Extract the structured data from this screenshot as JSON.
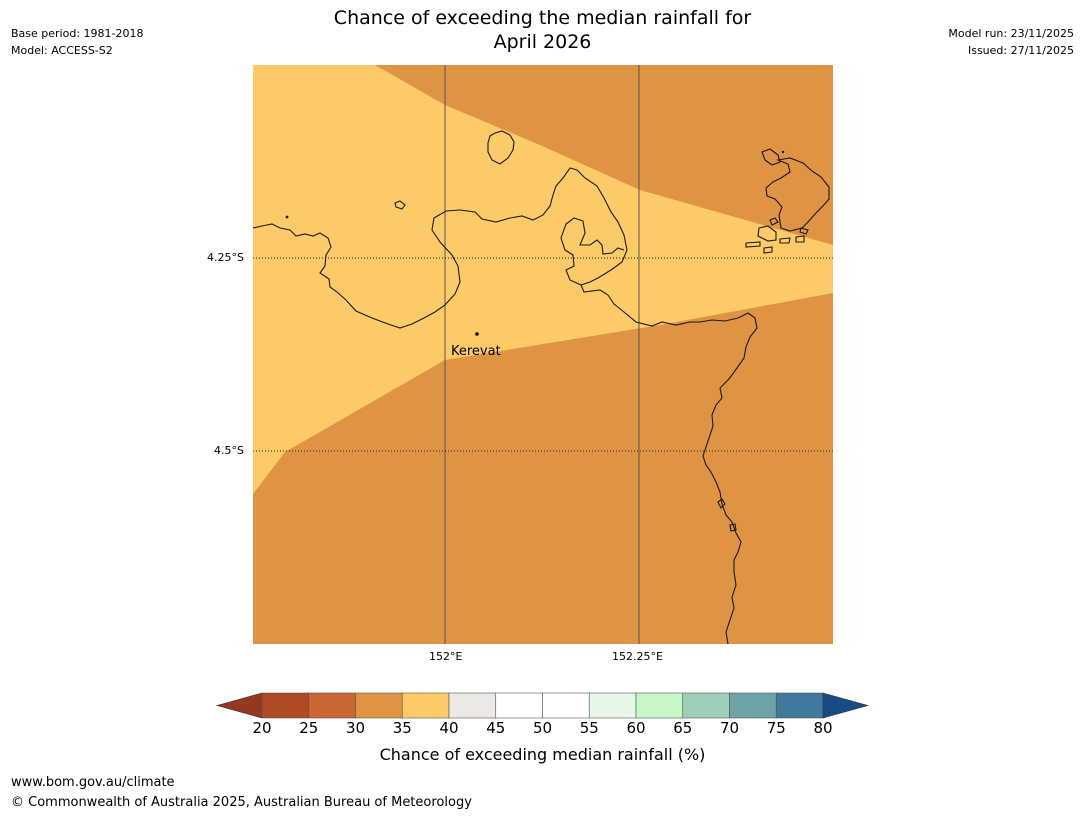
{
  "header": {
    "title_line1": "Chance of exceeding the median rainfall for",
    "title_line2": "April 2026",
    "base_period": "Base period: 1981-2018",
    "model": "Model: ACCESS-S2",
    "model_run": "Model run: 23/11/2025",
    "issued": "Issued: 27/11/2025"
  },
  "map": {
    "lat_labels": [
      "4.25°S",
      "4.5°S"
    ],
    "lon_labels": [
      "152°E",
      "152.25°E"
    ],
    "place_label": "Kerevat",
    "category_colors": {
      "30-35": "#df9444",
      "35-40": "#fdca68"
    },
    "coastline_color": "#1a1a1a",
    "gridline_color": "#555555"
  },
  "colorbar": {
    "label": "Chance of exceeding median rainfall (%)",
    "ticks": [
      "20",
      "25",
      "30",
      "35",
      "40",
      "45",
      "50",
      "55",
      "60",
      "65",
      "70",
      "75",
      "80"
    ],
    "colors": [
      "#b04a25",
      "#cc6531",
      "#df9444",
      "#fdca68",
      "#ece9e4",
      "#ffffff",
      "#ffffff",
      "#e7f7e7",
      "#c7f7c7",
      "#9bcfb8",
      "#6da3a5",
      "#40799b"
    ],
    "under_color": "#95381e",
    "over_color": "#174c85"
  },
  "footer": {
    "url": "www.bom.gov.au/climate",
    "copyright": "© Commonwealth of Australia 2025, Australian Bureau of Meteorology"
  }
}
